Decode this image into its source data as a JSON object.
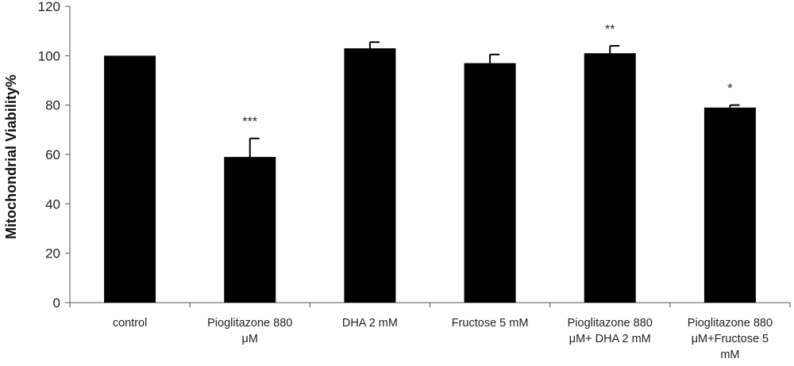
{
  "chart_data": {
    "type": "bar",
    "title": "",
    "xlabel": "",
    "ylabel": "Mitochondrial Viability%",
    "ylim": [
      0,
      120
    ],
    "yticks": [
      0,
      20,
      40,
      60,
      80,
      100,
      120
    ],
    "categories": [
      [
        "control"
      ],
      [
        "Pioglitazone 880",
        "μM"
      ],
      [
        "DHA 2 mM"
      ],
      [
        "Fructose 5 mM"
      ],
      [
        "Pioglitazone 880",
        "μM+ DHA 2 mM"
      ],
      [
        "Pioglitazone 880",
        "μM+Fructose 5",
        "mM"
      ]
    ],
    "values": [
      100,
      59,
      103,
      97,
      101,
      79
    ],
    "errors": [
      0,
      7.5,
      2.5,
      3.5,
      3,
      1
    ],
    "significance": [
      "",
      "***",
      "",
      "",
      "**",
      "*"
    ],
    "bar_color": "#000000",
    "grid": false,
    "legend": "none"
  }
}
